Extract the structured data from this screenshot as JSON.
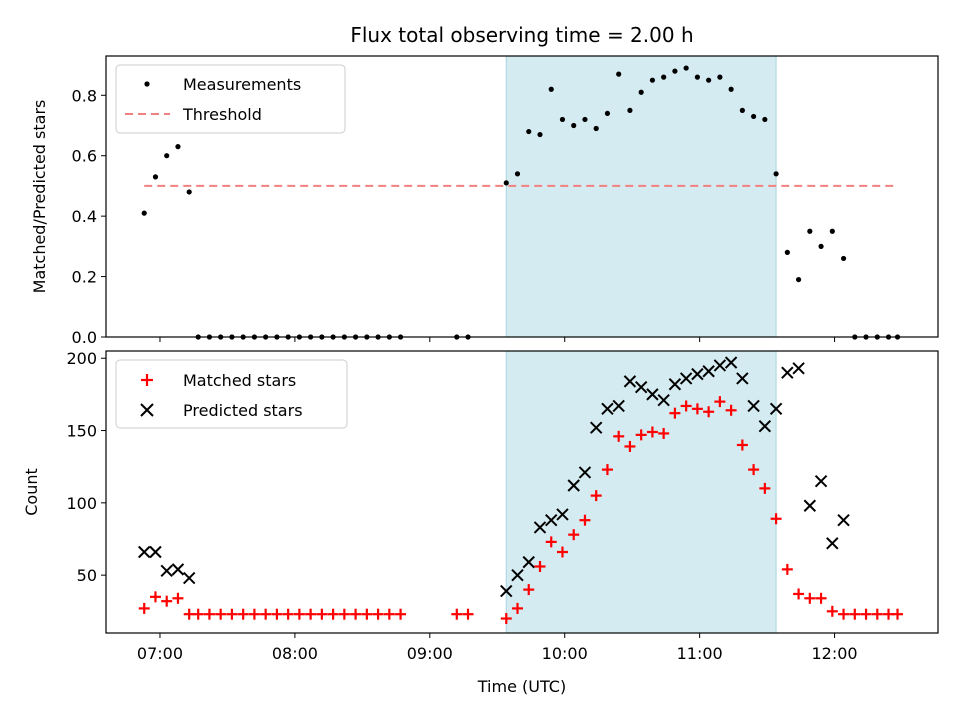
{
  "chart_data": {
    "type": "scatter",
    "title": "Flux total observing time = 2.00 h",
    "xlabel": "Time (UTC)",
    "x_tick_labels": [
      "07:00",
      "08:00",
      "09:00",
      "10:00",
      "11:00",
      "12:00"
    ],
    "x_ticks_minutes": [
      420,
      480,
      540,
      600,
      660,
      720
    ],
    "xlim_minutes": [
      396,
      766
    ],
    "highlight_span_minutes": [
      574,
      694
    ],
    "highlight_color": "#d4ebf1",
    "top": {
      "ylabel": "Matched/Predicted stars",
      "ylim": [
        0,
        0.93
      ],
      "y_ticks": [
        0.0,
        0.2,
        0.4,
        0.6,
        0.8
      ],
      "y_tick_labels": [
        "0.0",
        "0.2",
        "0.4",
        "0.6",
        "0.8"
      ],
      "threshold": {
        "value": 0.5,
        "x_start": 413,
        "x_end": 748,
        "color": "#f28080"
      },
      "legend": [
        "Measurements",
        "Threshold"
      ],
      "measurements": [
        [
          413,
          0.41
        ],
        [
          418,
          0.53
        ],
        [
          423,
          0.6
        ],
        [
          428,
          0.63
        ],
        [
          433,
          0.48
        ],
        [
          437,
          0
        ],
        [
          442,
          0
        ],
        [
          447,
          0
        ],
        [
          452,
          0
        ],
        [
          457,
          0
        ],
        [
          462,
          0
        ],
        [
          467,
          0
        ],
        [
          472,
          0
        ],
        [
          477,
          0
        ],
        [
          482,
          0
        ],
        [
          487,
          0
        ],
        [
          492,
          0
        ],
        [
          497,
          0
        ],
        [
          502,
          0
        ],
        [
          507,
          0
        ],
        [
          512,
          0
        ],
        [
          517,
          0
        ],
        [
          522,
          0
        ],
        [
          527,
          0
        ],
        [
          552,
          0
        ],
        [
          557,
          0
        ],
        [
          574,
          0.51
        ],
        [
          579,
          0.54
        ],
        [
          584,
          0.68
        ],
        [
          589,
          0.67
        ],
        [
          594,
          0.82
        ],
        [
          599,
          0.72
        ],
        [
          604,
          0.7
        ],
        [
          609,
          0.72
        ],
        [
          614,
          0.69
        ],
        [
          619,
          0.74
        ],
        [
          624,
          0.87
        ],
        [
          629,
          0.75
        ],
        [
          634,
          0.81
        ],
        [
          639,
          0.85
        ],
        [
          644,
          0.86
        ],
        [
          649,
          0.88
        ],
        [
          654,
          0.89
        ],
        [
          659,
          0.86
        ],
        [
          664,
          0.85
        ],
        [
          669,
          0.86
        ],
        [
          674,
          0.82
        ],
        [
          679,
          0.75
        ],
        [
          684,
          0.73
        ],
        [
          689,
          0.72
        ],
        [
          694,
          0.54
        ],
        [
          699,
          0.28
        ],
        [
          704,
          0.19
        ],
        [
          709,
          0.35
        ],
        [
          714,
          0.3
        ],
        [
          719,
          0.35
        ],
        [
          724,
          0.26
        ],
        [
          729,
          0
        ],
        [
          734,
          0
        ],
        [
          739,
          0
        ],
        [
          744,
          0
        ],
        [
          748,
          0
        ]
      ]
    },
    "bottom": {
      "ylabel": "Count",
      "ylim": [
        10,
        205
      ],
      "y_ticks": [
        50,
        100,
        150,
        200
      ],
      "y_tick_labels": [
        "50",
        "100",
        "150",
        "200"
      ],
      "legend": [
        "Matched stars",
        "Predicted stars"
      ],
      "matched_color": "#ff0000",
      "predicted_color": "#000000",
      "matched": [
        [
          413,
          27
        ],
        [
          418,
          35
        ],
        [
          423,
          32
        ],
        [
          428,
          34
        ],
        [
          433,
          23
        ],
        [
          437,
          23
        ],
        [
          442,
          23
        ],
        [
          447,
          23
        ],
        [
          452,
          23
        ],
        [
          457,
          23
        ],
        [
          462,
          23
        ],
        [
          467,
          23
        ],
        [
          472,
          23
        ],
        [
          477,
          23
        ],
        [
          482,
          23
        ],
        [
          487,
          23
        ],
        [
          492,
          23
        ],
        [
          497,
          23
        ],
        [
          502,
          23
        ],
        [
          507,
          23
        ],
        [
          512,
          23
        ],
        [
          517,
          23
        ],
        [
          522,
          23
        ],
        [
          527,
          23
        ],
        [
          552,
          23
        ],
        [
          557,
          23
        ],
        [
          574,
          20
        ],
        [
          579,
          27
        ],
        [
          584,
          40
        ],
        [
          589,
          56
        ],
        [
          594,
          73
        ],
        [
          599,
          66
        ],
        [
          604,
          78
        ],
        [
          609,
          88
        ],
        [
          614,
          105
        ],
        [
          619,
          123
        ],
        [
          624,
          146
        ],
        [
          629,
          139
        ],
        [
          634,
          147
        ],
        [
          639,
          149
        ],
        [
          644,
          148
        ],
        [
          649,
          162
        ],
        [
          654,
          167
        ],
        [
          659,
          165
        ],
        [
          664,
          163
        ],
        [
          669,
          170
        ],
        [
          674,
          164
        ],
        [
          679,
          140
        ],
        [
          684,
          123
        ],
        [
          689,
          110
        ],
        [
          694,
          89
        ],
        [
          699,
          54
        ],
        [
          704,
          37
        ],
        [
          709,
          34
        ],
        [
          714,
          34
        ],
        [
          719,
          25
        ],
        [
          724,
          23
        ],
        [
          729,
          23
        ],
        [
          734,
          23
        ],
        [
          739,
          23
        ],
        [
          744,
          23
        ],
        [
          748,
          23
        ]
      ],
      "predicted": [
        [
          413,
          66
        ],
        [
          418,
          66
        ],
        [
          423,
          53
        ],
        [
          428,
          54
        ],
        [
          433,
          48
        ],
        [
          574,
          39
        ],
        [
          579,
          50
        ],
        [
          584,
          59
        ],
        [
          589,
          83
        ],
        [
          594,
          88
        ],
        [
          599,
          92
        ],
        [
          604,
          112
        ],
        [
          609,
          121
        ],
        [
          614,
          152
        ],
        [
          619,
          165
        ],
        [
          624,
          167
        ],
        [
          629,
          184
        ],
        [
          634,
          180
        ],
        [
          639,
          175
        ],
        [
          644,
          171
        ],
        [
          649,
          182
        ],
        [
          654,
          186
        ],
        [
          659,
          189
        ],
        [
          664,
          191
        ],
        [
          669,
          195
        ],
        [
          674,
          197
        ],
        [
          679,
          186
        ],
        [
          684,
          167
        ],
        [
          689,
          153
        ],
        [
          694,
          165
        ],
        [
          699,
          190
        ],
        [
          704,
          193
        ],
        [
          709,
          98
        ],
        [
          714,
          115
        ],
        [
          719,
          72
        ],
        [
          724,
          88
        ]
      ]
    }
  }
}
